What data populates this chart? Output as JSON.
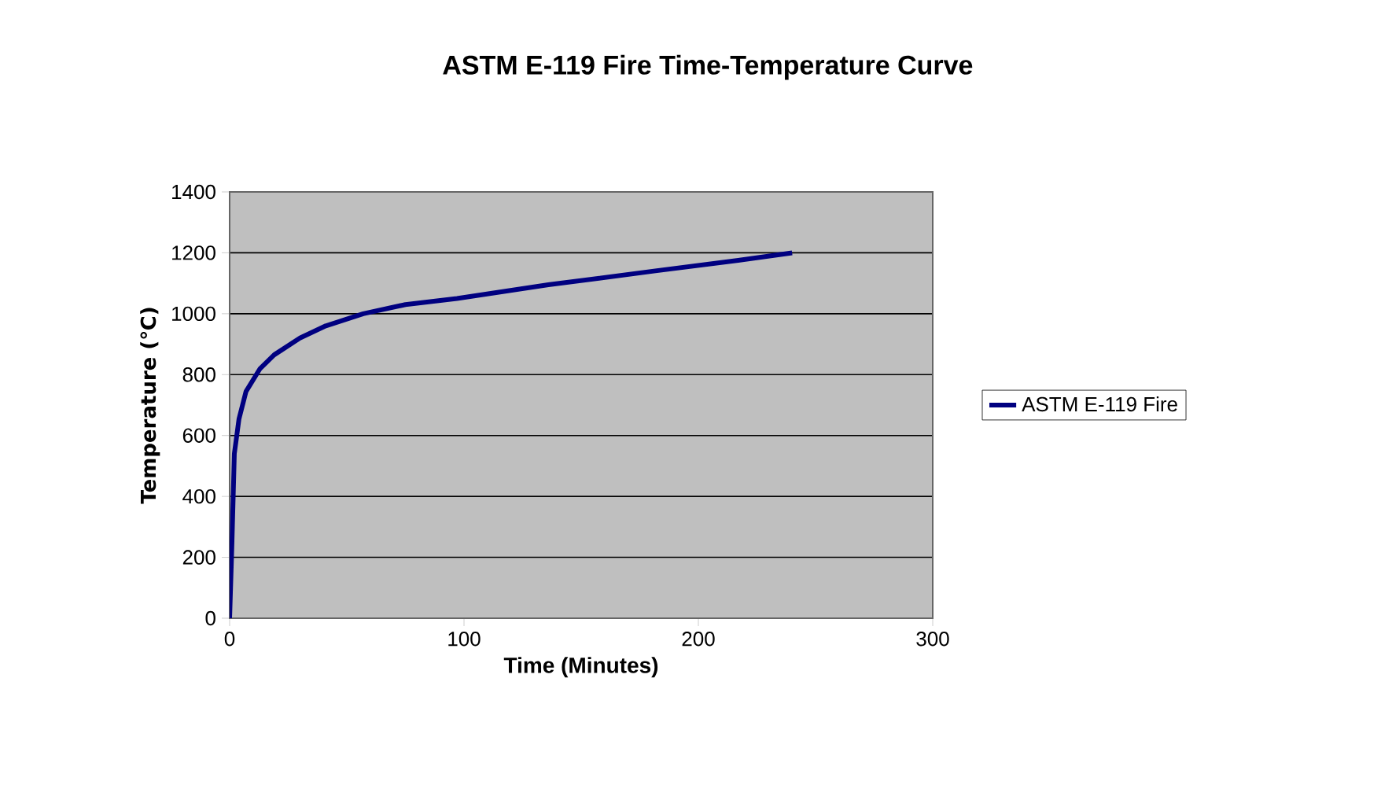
{
  "chart_data": {
    "type": "line",
    "title": "ASTM E-119 Fire Time-Temperature Curve",
    "xlabel": "Time (Minutes)",
    "ylabel": "Temperature (℃)",
    "x": [
      0,
      1,
      2,
      4,
      7,
      13,
      19,
      30,
      41,
      57,
      75,
      97,
      136,
      181,
      217,
      240
    ],
    "series": [
      {
        "name": "ASTM E-119 Fire",
        "color": "#000080",
        "values": [
          0,
          250,
          540,
          655,
          745,
          820,
          865,
          920,
          960,
          1000,
          1030,
          1050,
          1095,
          1140,
          1175,
          1200
        ]
      }
    ],
    "xlim": [
      0,
      300
    ],
    "ylim": [
      0,
      1400
    ],
    "xticks": [
      0,
      100,
      200,
      300
    ],
    "yticks": [
      0,
      200,
      400,
      600,
      800,
      1000,
      1200,
      1400
    ],
    "grid": "y",
    "legend": "right",
    "line_style": "solid"
  }
}
